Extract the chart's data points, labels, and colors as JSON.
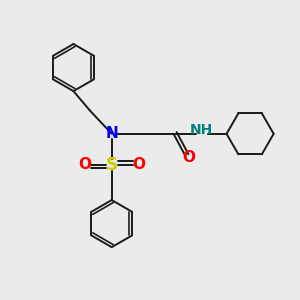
{
  "bg_color": "#ebebeb",
  "bond_color": "#1a1a1a",
  "N_color": "#0000ff",
  "S_color": "#cccc00",
  "O_color": "#ff0000",
  "NH_color": "#008080",
  "lw": 1.4,
  "figsize": [
    3.0,
    3.0
  ],
  "dpi": 100,
  "xlim": [
    0,
    10
  ],
  "ylim": [
    0,
    10
  ]
}
